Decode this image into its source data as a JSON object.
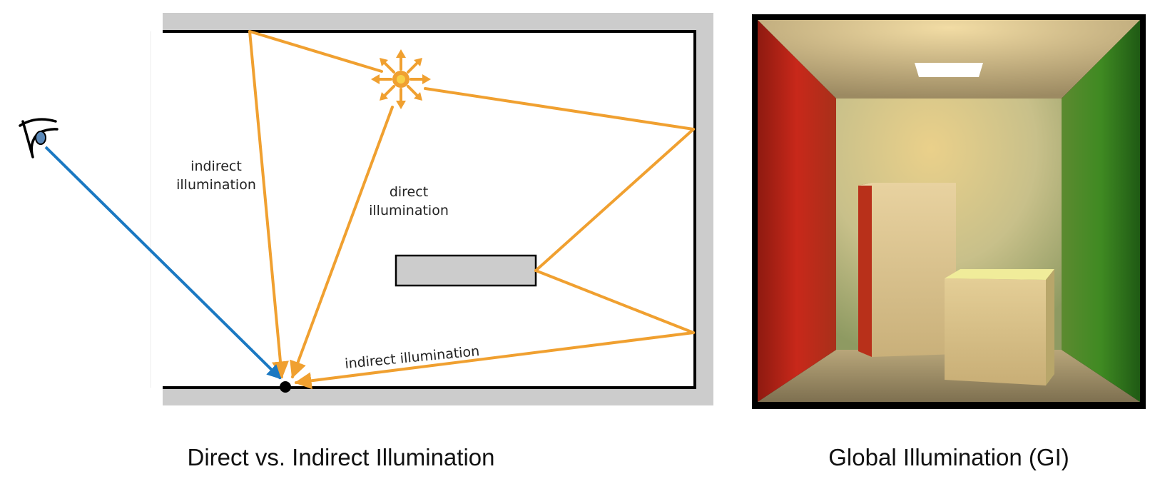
{
  "left_diagram": {
    "labels": {
      "indirect_left_line1": "indirect",
      "indirect_left_line2": "illumination",
      "direct_line1": "direct",
      "direct_line2": "illumination",
      "indirect_bottom": "indirect illumination"
    },
    "caption": "Direct vs. Indirect Illumination"
  },
  "right_render": {
    "caption": "Global Illumination (GI)"
  },
  "colors": {
    "ray_orange": "#F0A030",
    "eye_ray_blue": "#1A78C2",
    "wall_gray": "#CCCCCC",
    "red_wall": "#C8281A",
    "green_wall": "#3F8A22"
  }
}
